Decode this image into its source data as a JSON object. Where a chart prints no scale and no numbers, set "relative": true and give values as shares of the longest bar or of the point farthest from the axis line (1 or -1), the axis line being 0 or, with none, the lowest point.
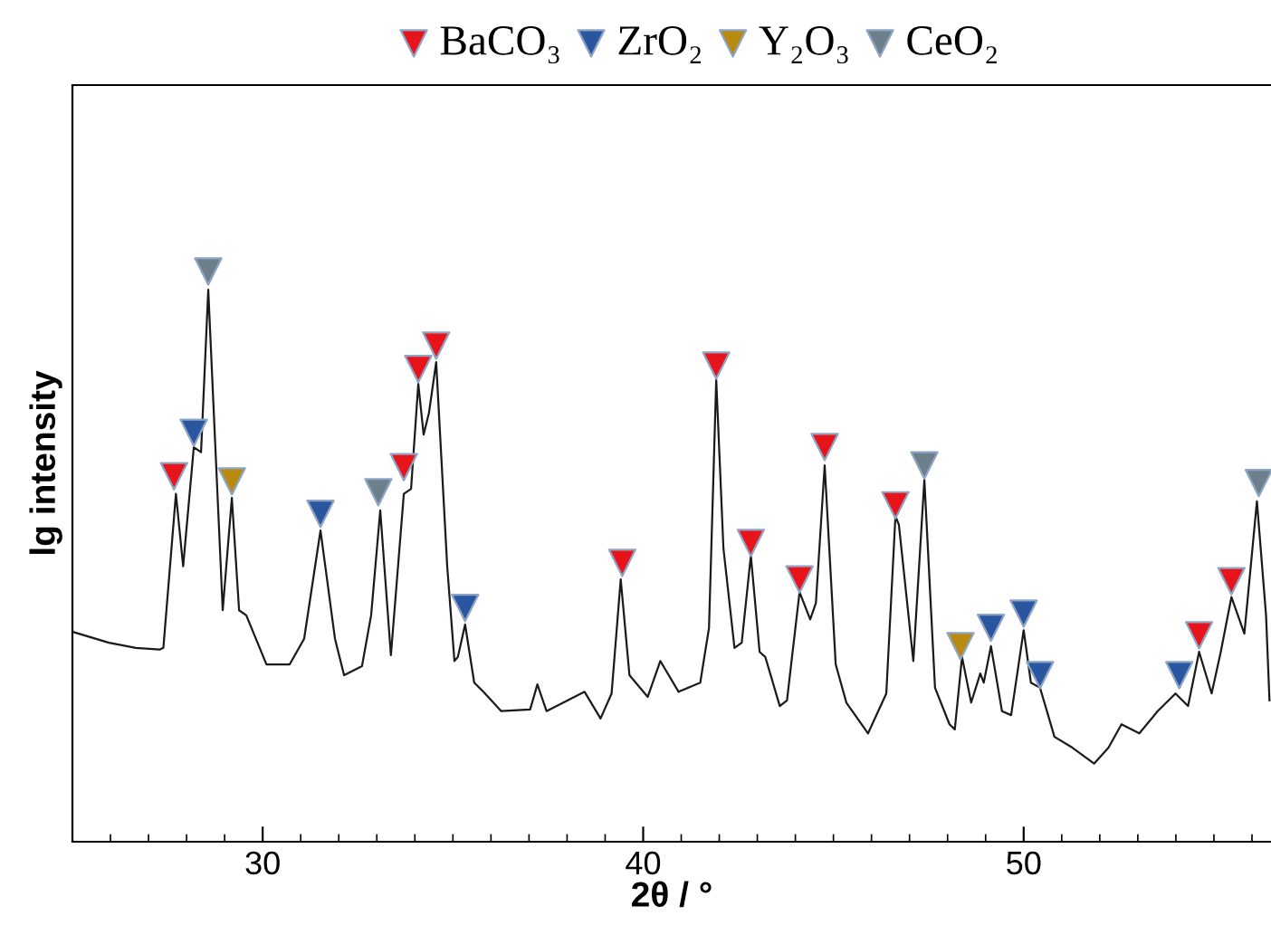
{
  "chart_data": {
    "type": "line",
    "relative": true,
    "xlabel": "2θ / °",
    "ylabel": "lg intensity",
    "xlim": [
      25,
      56.5
    ],
    "xticks": [
      30,
      40,
      50
    ],
    "tick_labels": "x",
    "grid": false,
    "legend": "top",
    "series": [
      {
        "color": "#1a1a1a",
        "marker": "none",
        "line_style": "solid",
        "x": [
          25.01,
          25.96,
          26.67,
          27.29,
          27.39,
          27.72,
          27.91,
          28.19,
          28.38,
          28.57,
          28.95,
          29.19,
          29.38,
          29.57,
          30.1,
          30.71,
          31.09,
          31.52,
          31.9,
          32.14,
          32.61,
          32.85,
          33.09,
          33.37,
          33.71,
          33.9,
          34.09,
          34.23,
          34.37,
          34.56,
          34.85,
          35.04,
          35.13,
          35.32,
          35.56,
          35.8,
          36.27,
          37.03,
          37.22,
          37.46,
          38.46,
          38.88,
          39.17,
          39.41,
          39.64,
          40.12,
          40.45,
          40.93,
          41.5,
          41.73,
          41.92,
          42.11,
          42.4,
          42.59,
          42.83,
          43.06,
          43.21,
          43.59,
          43.78,
          44.11,
          44.39,
          44.54,
          44.77,
          45.06,
          45.34,
          45.91,
          46.39,
          46.63,
          46.72,
          47.1,
          47.39,
          47.67,
          48.05,
          48.19,
          48.38,
          48.62,
          48.86,
          48.95,
          49.14,
          49.43,
          49.67,
          50.0,
          50.19,
          50.43,
          50.81,
          51.28,
          51.85,
          52.23,
          52.57,
          53.04,
          53.52,
          53.99,
          54.32,
          54.61,
          54.94,
          55.18,
          55.46,
          55.8,
          56.13,
          56.37,
          56.46
        ],
        "values": [
          0.368,
          0.349,
          0.34,
          0.337,
          0.34,
          0.61,
          0.483,
          0.692,
          0.683,
          0.968,
          0.406,
          0.603,
          0.406,
          0.397,
          0.311,
          0.311,
          0.356,
          0.546,
          0.356,
          0.292,
          0.308,
          0.397,
          0.581,
          0.327,
          0.61,
          0.619,
          0.803,
          0.714,
          0.752,
          0.841,
          0.483,
          0.317,
          0.324,
          0.381,
          0.279,
          0.263,
          0.229,
          0.232,
          0.276,
          0.229,
          0.263,
          0.216,
          0.26,
          0.46,
          0.292,
          0.254,
          0.317,
          0.263,
          0.279,
          0.375,
          0.81,
          0.514,
          0.34,
          0.349,
          0.502,
          0.333,
          0.324,
          0.238,
          0.248,
          0.438,
          0.39,
          0.419,
          0.66,
          0.311,
          0.244,
          0.19,
          0.26,
          0.571,
          0.556,
          0.317,
          0.635,
          0.27,
          0.206,
          0.197,
          0.324,
          0.244,
          0.295,
          0.279,
          0.343,
          0.229,
          0.222,
          0.371,
          0.279,
          0.27,
          0.184,
          0.165,
          0.137,
          0.165,
          0.206,
          0.19,
          0.229,
          0.26,
          0.238,
          0.333,
          0.26,
          0.333,
          0.429,
          0.365,
          0.597,
          0.397,
          0.248
        ]
      },
      {
        "type": "scatter",
        "name": "BaCO₃",
        "color": "#e8141c",
        "marker": "triangle",
        "x": [
          27.67,
          33.71,
          34.09,
          34.56,
          39.45,
          41.92,
          42.83,
          44.11,
          44.77,
          46.63,
          54.61,
          55.46
        ],
        "values": [
          0.641,
          0.657,
          0.829,
          0.87,
          0.489,
          0.835,
          0.524,
          0.46,
          0.692,
          0.59,
          0.362,
          0.457
        ]
      },
      {
        "type": "scatter",
        "name": "ZrO₂",
        "color": "#2a56a0",
        "marker": "triangle",
        "x": [
          28.19,
          31.52,
          35.32,
          49.14,
          50.0,
          50.43,
          54.09
        ],
        "values": [
          0.717,
          0.575,
          0.41,
          0.375,
          0.4,
          0.292,
          0.292
        ]
      },
      {
        "type": "scatter",
        "name": "Y₂O₃",
        "color": "#b88a10",
        "marker": "triangle",
        "x": [
          29.19,
          48.34
        ],
        "values": [
          0.632,
          0.343
        ]
      },
      {
        "type": "scatter",
        "name": "CeO₂",
        "color": "#6e7f8c",
        "marker": "triangle",
        "x": [
          28.57,
          33.04,
          47.39,
          56.18
        ],
        "values": [
          1.0,
          0.613,
          0.66,
          0.629
        ]
      }
    ]
  }
}
